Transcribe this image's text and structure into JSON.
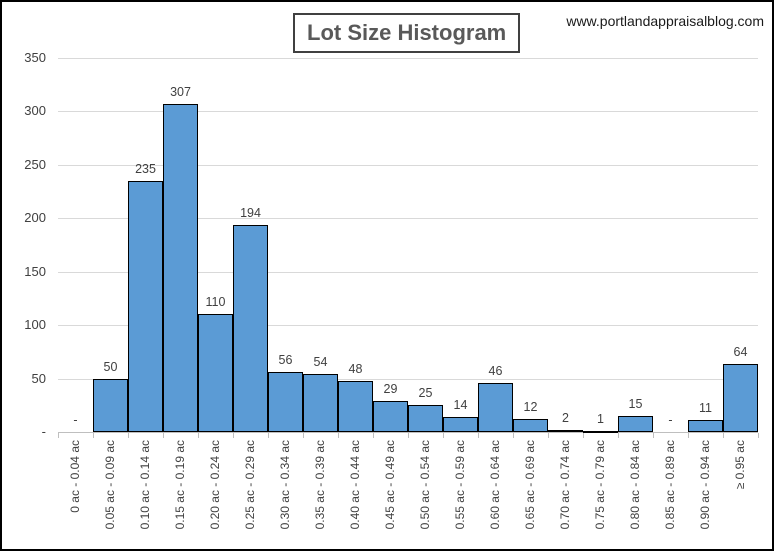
{
  "header": {
    "title": "Lot Size Histogram",
    "website": "www.portlandappraisalblog.com"
  },
  "chart_data": {
    "type": "bar",
    "title": "Lot Size Histogram",
    "categories": [
      "0 ac - 0.04 ac",
      "0.05 ac - 0.09 ac",
      "0.10 ac - 0.14 ac",
      "0.15 ac - 0.19 ac",
      "0.20 ac - 0.24 ac",
      "0.25 ac - 0.29 ac",
      "0.30 ac - 0.34 ac",
      "0.35 ac - 0.39 ac",
      "0.40 ac - 0.44 ac",
      "0.45 ac - 0.49 ac",
      "0.50 ac - 0.54 ac",
      "0.55 ac - 0.59 ac",
      "0.60 ac - 0.64 ac",
      "0.65 ac - 0.69 ac",
      "0.70 ac - 0.74 ac",
      "0.75 ac - 0.79 ac",
      "0.80 ac - 0.84 ac",
      "0.85 ac - 0.89 ac",
      "0.90 ac - 0.94 ac",
      "≥ 0.95 ac"
    ],
    "values": [
      0,
      50,
      235,
      307,
      110,
      194,
      56,
      54,
      48,
      29,
      25,
      14,
      46,
      12,
      2,
      1,
      15,
      0,
      11,
      64
    ],
    "bar_labels": [
      "-",
      "50",
      "235",
      "307",
      "110",
      "194",
      "56",
      "54",
      "48",
      "29",
      "25",
      "14",
      "46",
      "12",
      "2",
      "1",
      "15",
      "-",
      "11",
      "64"
    ],
    "xlabel": "",
    "ylabel": "",
    "ylim": [
      0,
      350
    ],
    "yticks": [
      0,
      50,
      100,
      150,
      200,
      250,
      300,
      350
    ],
    "ytick_labels": [
      "-",
      "50",
      "100",
      "150",
      "200",
      "250",
      "300",
      "350"
    ],
    "grid": true,
    "legend_position": "none",
    "colors": {
      "bar_fill": "#5B9BD5",
      "bar_border": "#000000",
      "gridline": "#D9D9D9",
      "axis_line": "#BFBFBF",
      "label_text": "#404040",
      "title_text": "#595959"
    }
  }
}
